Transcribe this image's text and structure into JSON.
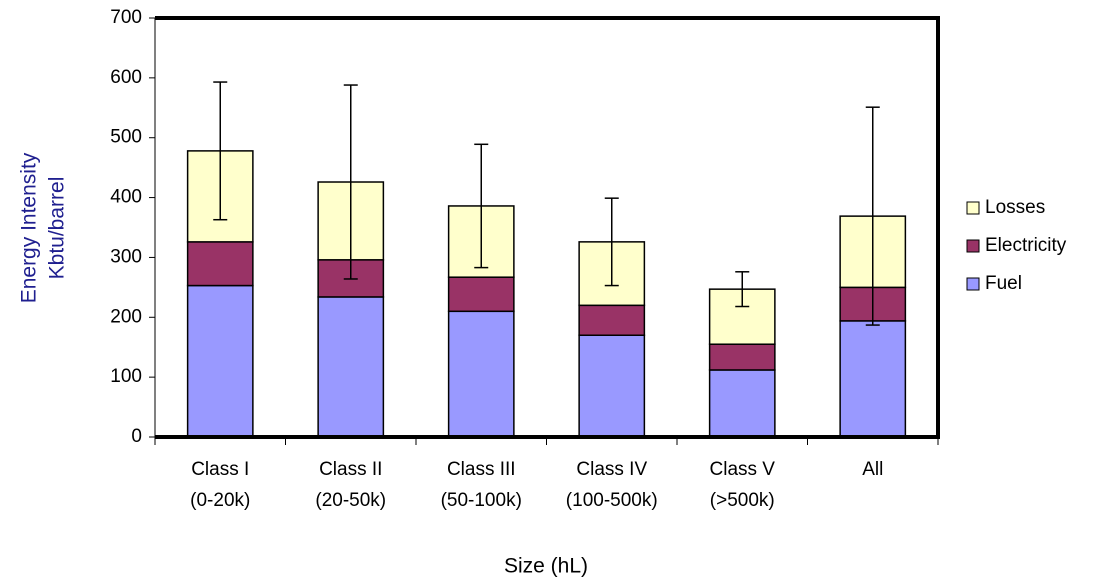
{
  "chart_data": {
    "type": "stacked-bar",
    "x_label": "Size (hL)",
    "y_label": [
      "Energy Intensity",
      "Kbtu/barrel"
    ],
    "categories": [
      [
        "Class I",
        "(0-20k)"
      ],
      [
        "Class II",
        "(20-50k)"
      ],
      [
        "Class III",
        "(50-100k)"
      ],
      [
        "Class IV",
        "(100-500k)"
      ],
      [
        "Class V",
        "(>500k)"
      ],
      [
        "All"
      ]
    ],
    "series": [
      {
        "name": "Fuel",
        "color": "#9999ff",
        "values": [
          253,
          234,
          210,
          170,
          112,
          194
        ]
      },
      {
        "name": "Electricity",
        "color": "#993366",
        "values": [
          73,
          62,
          57,
          50,
          43,
          56
        ]
      },
      {
        "name": "Losses",
        "color": "#ffffcc",
        "values": [
          152,
          130,
          119,
          106,
          92,
          119
        ],
        "errors": [
          115,
          162,
          103,
          73,
          29,
          182
        ]
      }
    ],
    "ylim": [
      0,
      700
    ],
    "yticks": [
      0,
      100,
      200,
      300,
      400,
      500,
      600,
      700
    ]
  }
}
